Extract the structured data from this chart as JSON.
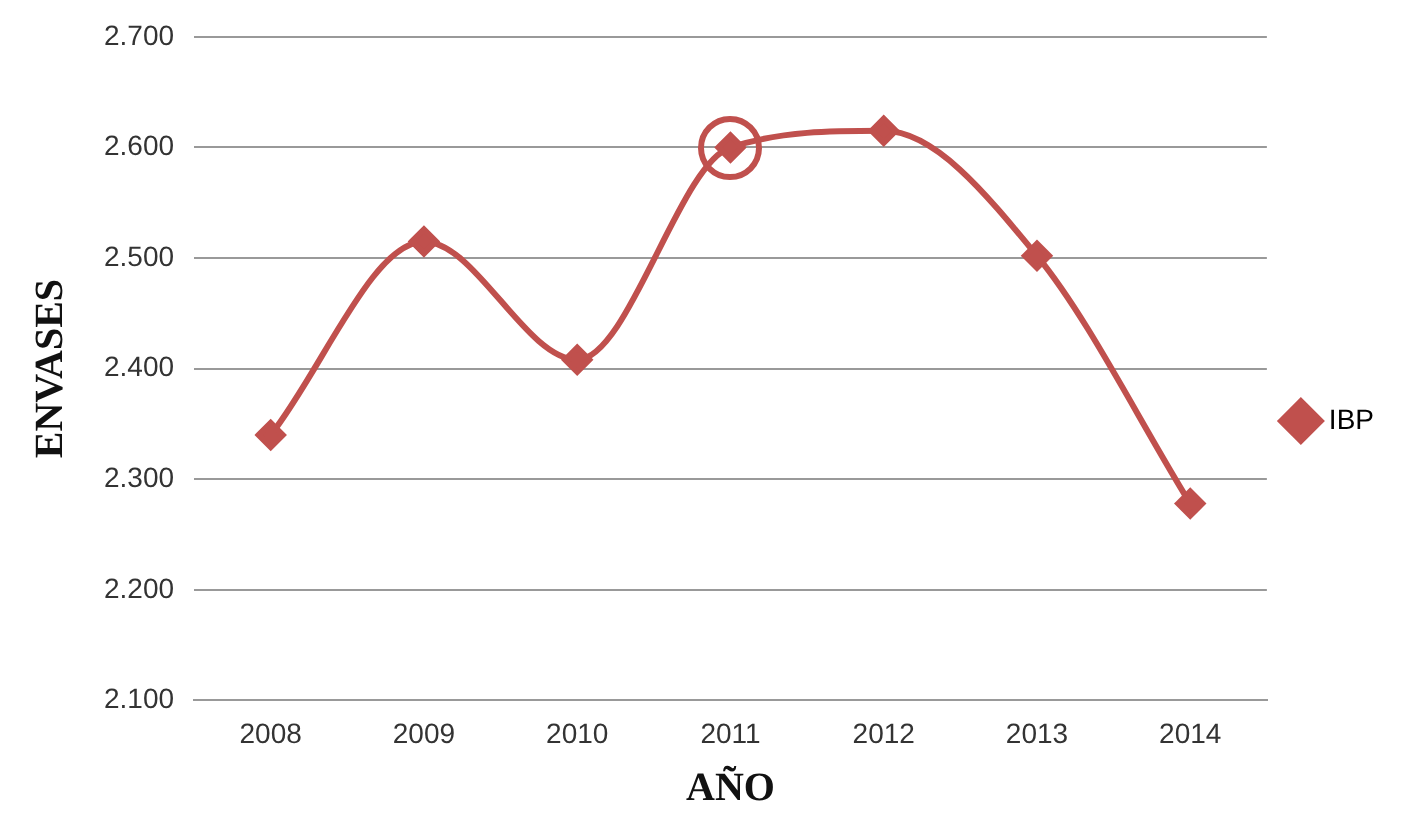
{
  "chart_data": {
    "type": "line",
    "xlabel": "AÑO",
    "ylabel": "ENVASES",
    "categories": [
      "2008",
      "2009",
      "2010",
      "2011",
      "2012",
      "2013",
      "2014"
    ],
    "series": [
      {
        "name": "IBP",
        "color": "#c0504d",
        "values": [
          2340,
          2515,
          2408,
          2600,
          2615,
          2502,
          2278
        ]
      }
    ],
    "ylim": [
      2100,
      2700
    ],
    "yticks": [
      {
        "value": 2100,
        "label": "2.100"
      },
      {
        "value": 2200,
        "label": "2.200"
      },
      {
        "value": 2300,
        "label": "2.300"
      },
      {
        "value": 2400,
        "label": "2.400"
      },
      {
        "value": 2500,
        "label": "2.500"
      },
      {
        "value": 2600,
        "label": "2.600"
      },
      {
        "value": 2700,
        "label": "2.700"
      }
    ],
    "grid": "y",
    "legend": "right",
    "marker": "diamond",
    "line_style": "solid"
  }
}
